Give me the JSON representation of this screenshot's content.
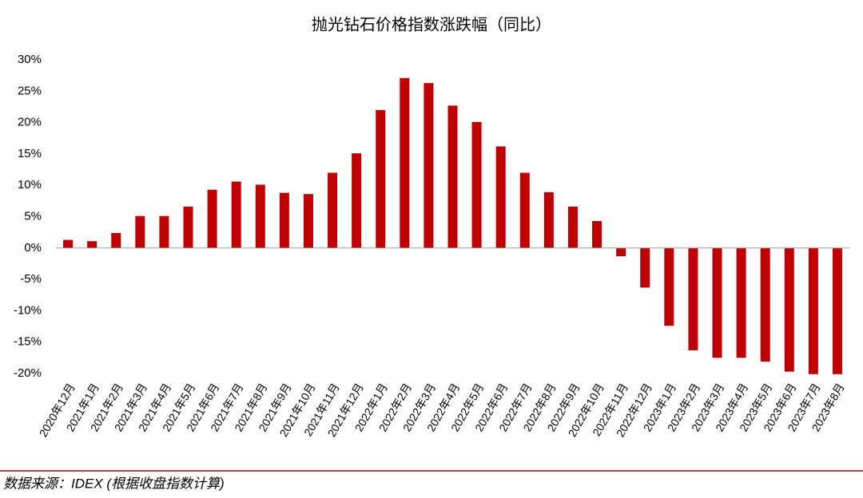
{
  "chart_data": {
    "type": "bar",
    "title": "抛光钻石价格指数涨跌幅（同比）",
    "categories": [
      "2020年12月",
      "2021年1月",
      "2021年2月",
      "2021年3月",
      "2021年4月",
      "2021年5月",
      "2021年6月",
      "2021年7月",
      "2021年8月",
      "2021年9月",
      "2021年10月",
      "2021年11月",
      "2021年12月",
      "2022年1月",
      "2022年2月",
      "2022年3月",
      "2022年4月",
      "2022年5月",
      "2022年6月",
      "2022年7月",
      "2022年8月",
      "2022年9月",
      "2022年10月",
      "2022年11月",
      "2022年12月",
      "2023年1月",
      "2023年2月",
      "2023年3月",
      "2023年4月",
      "2023年5月",
      "2023年6月",
      "2023年7月",
      "2023年8月"
    ],
    "values": [
      1.3,
      1.1,
      2.4,
      5.1,
      5.1,
      6.6,
      9.3,
      10.6,
      10.1,
      8.8,
      8.6,
      12.0,
      15.1,
      22.0,
      27.1,
      26.3,
      22.7,
      20.1,
      16.2,
      12.0,
      8.9,
      6.6,
      4.3,
      -1.3,
      -6.3,
      -12.4,
      -16.3,
      -17.5,
      -17.5,
      -18.1,
      -19.7,
      -20.1,
      -20.1
    ],
    "color": "#c00000",
    "ylim": [
      -20,
      30
    ],
    "yticks": [
      {
        "value": 30,
        "label": "30%"
      },
      {
        "value": 25,
        "label": "25%"
      },
      {
        "value": 20,
        "label": "20%"
      },
      {
        "value": 15,
        "label": "15%"
      },
      {
        "value": 10,
        "label": "10%"
      },
      {
        "value": 5,
        "label": "5%"
      },
      {
        "value": 0,
        "label": "0%"
      },
      {
        "value": -5,
        "label": "-5%"
      },
      {
        "value": -10,
        "label": "-10%"
      },
      {
        "value": -15,
        "label": "-15%"
      },
      {
        "value": -20,
        "label": "-20%"
      }
    ],
    "grid": false,
    "source": "数据来源：IDEX (根据收盘指数计算)"
  }
}
